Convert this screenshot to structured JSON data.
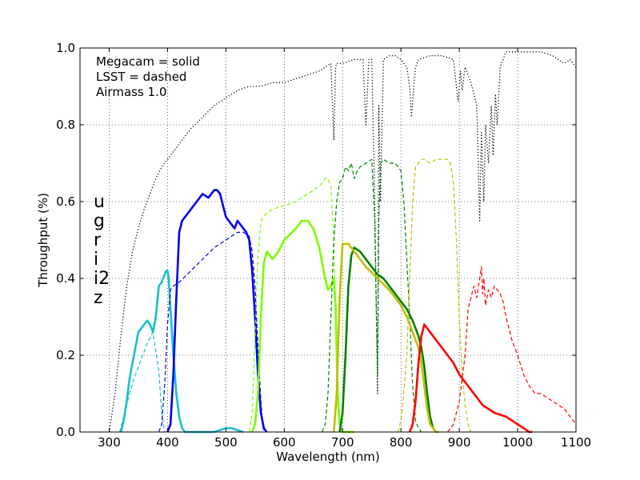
{
  "chart_data": {
    "type": "line",
    "xlabel": "Wavelength (nm)",
    "ylabel": "Throughput (%)",
    "xlim": [
      250,
      1100
    ],
    "ylim": [
      0,
      1.0
    ],
    "xticks": [
      300,
      400,
      500,
      600,
      700,
      800,
      900,
      1000,
      1100
    ],
    "xtick_labels": [
      "300",
      "400",
      "500",
      "600",
      "700",
      "800",
      "900",
      "1000",
      "1100"
    ],
    "yticks": [
      0,
      0.2,
      0.4,
      0.6,
      0.8,
      1.0
    ],
    "ytick_labels": [
      "0.0",
      "0.2",
      "0.4",
      "0.6",
      "0.8",
      "1.0"
    ],
    "grid": true,
    "annotations": [
      "Megacam = solid",
      "LSST = dashed",
      "Airmass 1.0"
    ],
    "legend": [
      {
        "label": "u",
        "color": "#17becf"
      },
      {
        "label": "g",
        "color": "#0000ee"
      },
      {
        "label": "r",
        "color": "#7cfc00"
      },
      {
        "label": "i",
        "color": "#008000"
      },
      {
        "label": "i2",
        "color": "#bfbf00"
      },
      {
        "label": "z",
        "color": "#ff0000"
      }
    ],
    "series": [
      {
        "name": "atmosphere",
        "style": "dotted",
        "color": "#000000",
        "width": 1.3,
        "x": [
          300,
          310,
          320,
          330,
          340,
          350,
          360,
          370,
          380,
          390,
          400,
          420,
          440,
          460,
          480,
          500,
          520,
          540,
          560,
          580,
          600,
          620,
          640,
          660,
          680,
          685,
          688,
          690,
          700,
          720,
          735,
          740,
          745,
          750,
          755,
          760,
          762,
          765,
          770,
          780,
          790,
          800,
          810,
          815,
          818,
          822,
          825,
          830,
          850,
          870,
          890,
          895,
          898,
          902,
          905,
          910,
          920,
          930,
          935,
          938,
          942,
          945,
          950,
          955,
          958,
          962,
          965,
          970,
          980,
          1000,
          1020,
          1040,
          1060,
          1080,
          1090,
          1100
        ],
        "y": [
          0.0,
          0.1,
          0.25,
          0.38,
          0.47,
          0.53,
          0.58,
          0.62,
          0.66,
          0.69,
          0.71,
          0.75,
          0.79,
          0.82,
          0.85,
          0.87,
          0.89,
          0.9,
          0.9,
          0.91,
          0.91,
          0.92,
          0.93,
          0.94,
          0.96,
          0.76,
          0.95,
          0.96,
          0.96,
          0.97,
          0.97,
          0.8,
          0.97,
          0.97,
          0.6,
          0.1,
          0.85,
          0.6,
          0.97,
          0.98,
          0.98,
          0.97,
          0.95,
          0.9,
          0.82,
          0.9,
          0.95,
          0.97,
          0.98,
          0.98,
          0.97,
          0.9,
          0.86,
          0.94,
          0.89,
          0.95,
          0.91,
          0.85,
          0.55,
          0.78,
          0.6,
          0.8,
          0.7,
          0.85,
          0.72,
          0.88,
          0.8,
          0.95,
          0.99,
          0.99,
          0.99,
          0.99,
          0.98,
          0.96,
          0.97,
          0.95
        ]
      },
      {
        "name": "u LSST",
        "style": "dashed",
        "color": "#17becf",
        "width": 1.2,
        "x": [
          318,
          325,
          335,
          345,
          355,
          365,
          375,
          385,
          390,
          395
        ],
        "y": [
          0.0,
          0.04,
          0.1,
          0.15,
          0.19,
          0.23,
          0.26,
          0.16,
          0.05,
          0.0
        ]
      },
      {
        "name": "u Megacam",
        "style": "solid",
        "color": "#17becf",
        "width": 2.6,
        "x": [
          320,
          325,
          330,
          335,
          340,
          345,
          350,
          355,
          360,
          365,
          370,
          375,
          380,
          385,
          390,
          395,
          398,
          400,
          402,
          405,
          410,
          415,
          420,
          425,
          430,
          440,
          480,
          500,
          510,
          530
        ],
        "y": [
          0.0,
          0.03,
          0.08,
          0.14,
          0.18,
          0.22,
          0.26,
          0.27,
          0.28,
          0.29,
          0.28,
          0.26,
          0.3,
          0.38,
          0.39,
          0.41,
          0.42,
          0.42,
          0.4,
          0.32,
          0.2,
          0.1,
          0.04,
          0.01,
          0.0,
          0.0,
          0.0,
          0.01,
          0.01,
          0.0
        ]
      },
      {
        "name": "g LSST",
        "style": "dashed",
        "color": "#0000ee",
        "width": 1.2,
        "x": [
          385,
          390,
          395,
          400,
          405,
          410,
          420,
          440,
          460,
          480,
          500,
          520,
          530,
          540,
          545,
          550,
          555,
          560,
          563,
          565
        ],
        "y": [
          0.0,
          0.02,
          0.12,
          0.28,
          0.37,
          0.38,
          0.39,
          0.42,
          0.45,
          0.48,
          0.5,
          0.52,
          0.52,
          0.51,
          0.47,
          0.38,
          0.22,
          0.08,
          0.02,
          0.0
        ]
      },
      {
        "name": "g Megacam",
        "style": "solid",
        "color": "#0000ee",
        "width": 2.6,
        "x": [
          400,
          405,
          410,
          415,
          420,
          425,
          430,
          440,
          450,
          460,
          470,
          480,
          485,
          490,
          495,
          500,
          505,
          510,
          515,
          520,
          525,
          530,
          535,
          540,
          545,
          550,
          555,
          560,
          565,
          570
        ],
        "y": [
          0.0,
          0.02,
          0.15,
          0.35,
          0.52,
          0.55,
          0.56,
          0.58,
          0.6,
          0.62,
          0.61,
          0.63,
          0.63,
          0.62,
          0.59,
          0.56,
          0.55,
          0.54,
          0.53,
          0.55,
          0.54,
          0.53,
          0.52,
          0.5,
          0.42,
          0.3,
          0.15,
          0.05,
          0.01,
          0.0
        ]
      },
      {
        "name": "r LSST",
        "style": "dashed",
        "color": "#7cfc00",
        "width": 1.2,
        "x": [
          540,
          545,
          550,
          555,
          560,
          570,
          580,
          600,
          620,
          640,
          660,
          670,
          675,
          680,
          685,
          690,
          695,
          700
        ],
        "y": [
          0.0,
          0.05,
          0.25,
          0.45,
          0.55,
          0.57,
          0.58,
          0.59,
          0.6,
          0.62,
          0.64,
          0.66,
          0.66,
          0.64,
          0.5,
          0.2,
          0.03,
          0.0
        ]
      },
      {
        "name": "r Megacam",
        "style": "solid",
        "color": "#7cfc00",
        "width": 2.6,
        "x": [
          545,
          550,
          555,
          560,
          565,
          570,
          575,
          580,
          585,
          590,
          600,
          620,
          630,
          640,
          650,
          660,
          670,
          675,
          680,
          685,
          688,
          690,
          692,
          695,
          700,
          705,
          710,
          715,
          720
        ],
        "y": [
          0.0,
          0.02,
          0.1,
          0.3,
          0.44,
          0.47,
          0.46,
          0.45,
          0.46,
          0.47,
          0.5,
          0.53,
          0.55,
          0.55,
          0.53,
          0.48,
          0.4,
          0.37,
          0.38,
          0.4,
          0.33,
          0.2,
          0.08,
          0.02,
          0.0,
          0.0,
          0.0,
          0.0,
          0.0
        ]
      },
      {
        "name": "i LSST",
        "style": "dashed",
        "color": "#008000",
        "width": 1.2,
        "x": [
          665,
          670,
          675,
          680,
          685,
          690,
          695,
          700,
          705,
          710,
          715,
          720,
          725,
          730,
          740,
          750,
          755,
          758,
          760,
          762,
          765,
          770,
          780,
          790,
          800,
          805,
          810,
          815,
          820,
          825,
          830,
          835
        ],
        "y": [
          0.0,
          0.02,
          0.1,
          0.3,
          0.5,
          0.6,
          0.65,
          0.66,
          0.69,
          0.68,
          0.7,
          0.66,
          0.68,
          0.69,
          0.7,
          0.71,
          0.55,
          0.3,
          0.15,
          0.55,
          0.7,
          0.71,
          0.7,
          0.7,
          0.68,
          0.6,
          0.45,
          0.3,
          0.12,
          0.03,
          0.01,
          0.0
        ]
      },
      {
        "name": "i Megacam",
        "style": "solid",
        "color": "#008000",
        "width": 2.6,
        "x": [
          695,
          700,
          705,
          710,
          715,
          720,
          730,
          740,
          750,
          760,
          770,
          780,
          790,
          800,
          810,
          820,
          830,
          835,
          840,
          845,
          850,
          855,
          860
        ],
        "y": [
          0.0,
          0.05,
          0.2,
          0.38,
          0.46,
          0.48,
          0.47,
          0.45,
          0.43,
          0.41,
          0.4,
          0.38,
          0.36,
          0.34,
          0.32,
          0.29,
          0.25,
          0.22,
          0.17,
          0.1,
          0.04,
          0.01,
          0.0
        ]
      },
      {
        "name": "i2 LSST",
        "style": "dashed",
        "color": "#bfbf00",
        "width": 1.2,
        "x": [
          795,
          800,
          805,
          810,
          815,
          820,
          825,
          830,
          835,
          840,
          850,
          860,
          870,
          880,
          885,
          890,
          895,
          900,
          905,
          910,
          915,
          920
        ],
        "y": [
          0.0,
          0.03,
          0.1,
          0.2,
          0.4,
          0.6,
          0.69,
          0.7,
          0.71,
          0.71,
          0.7,
          0.71,
          0.71,
          0.71,
          0.7,
          0.65,
          0.5,
          0.3,
          0.15,
          0.07,
          0.02,
          0.0
        ]
      },
      {
        "name": "i2 Megacam",
        "style": "solid",
        "color": "#bfbf00",
        "width": 2.6,
        "x": [
          685,
          690,
          695,
          700,
          705,
          710,
          720,
          740,
          760,
          780,
          800,
          810,
          820,
          830,
          835,
          840,
          845,
          850,
          855,
          860,
          865
        ],
        "y": [
          0.0,
          0.1,
          0.35,
          0.49,
          0.49,
          0.49,
          0.47,
          0.43,
          0.4,
          0.37,
          0.33,
          0.3,
          0.26,
          0.22,
          0.18,
          0.12,
          0.06,
          0.02,
          0.01,
          0.0,
          0.0
        ]
      },
      {
        "name": "z LSST",
        "style": "dashed",
        "color": "#ff0000",
        "width": 1.2,
        "x": [
          880,
          890,
          900,
          910,
          915,
          920,
          925,
          930,
          935,
          938,
          940,
          942,
          945,
          950,
          955,
          960,
          965,
          970,
          975,
          980,
          990,
          1000,
          1010,
          1020,
          1030,
          1040,
          1050,
          1060,
          1070,
          1080,
          1090,
          1100
        ],
        "y": [
          0.0,
          0.02,
          0.08,
          0.2,
          0.32,
          0.35,
          0.38,
          0.35,
          0.4,
          0.43,
          0.36,
          0.4,
          0.33,
          0.37,
          0.35,
          0.38,
          0.37,
          0.36,
          0.34,
          0.3,
          0.24,
          0.2,
          0.15,
          0.12,
          0.1,
          0.1,
          0.09,
          0.08,
          0.07,
          0.06,
          0.04,
          0.02
        ]
      },
      {
        "name": "z Megacam",
        "style": "solid",
        "color": "#ff0000",
        "width": 2.6,
        "x": [
          815,
          820,
          825,
          830,
          835,
          840,
          845,
          850,
          860,
          870,
          880,
          890,
          900,
          920,
          940,
          960,
          980,
          1000,
          1010,
          1020,
          1025
        ],
        "y": [
          0.0,
          0.02,
          0.08,
          0.18,
          0.25,
          0.28,
          0.27,
          0.26,
          0.24,
          0.22,
          0.2,
          0.18,
          0.15,
          0.11,
          0.07,
          0.05,
          0.04,
          0.02,
          0.01,
          0.0,
          0.0
        ]
      }
    ]
  }
}
